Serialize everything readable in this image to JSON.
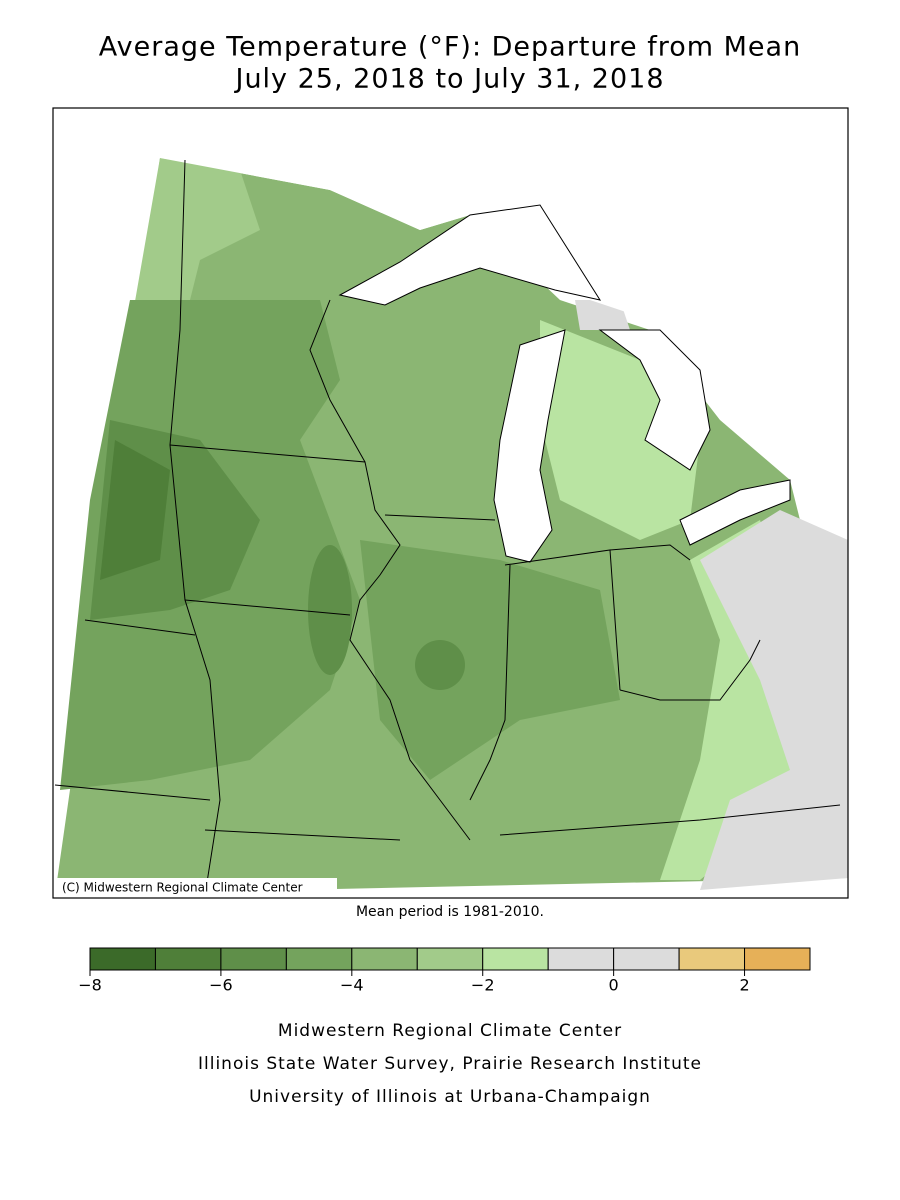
{
  "title": [
    "Average Temperature (°F): Departure from Mean",
    "July 25, 2018 to July 31, 2018"
  ],
  "map": {
    "copyright": "(C) Midwestern Regional Climate Center",
    "mean_period": "Mean period is 1981-2010."
  },
  "colorbar": {
    "bins": [
      -8,
      -7,
      -6,
      -5,
      -4,
      -3,
      -2,
      -1,
      0,
      1,
      2,
      3
    ],
    "colors": [
      "#3b6a29",
      "#4f7f39",
      "#5f8f49",
      "#74a35d",
      "#8bb673",
      "#a2cb8a",
      "#b9e4a2",
      "#dcdcdc",
      "#dcdcdc",
      "#e9c97c",
      "#e6b058"
    ],
    "ticks": [
      {
        "value": -8,
        "label": "−8"
      },
      {
        "value": -6,
        "label": "−6"
      },
      {
        "value": -4,
        "label": "−4"
      },
      {
        "value": -2,
        "label": "−2"
      },
      0,
      2
    ]
  },
  "credits": [
    "Midwestern Regional Climate Center",
    "Illinois State Water Survey, Prairie Research Institute",
    "University of Illinois at Urbana-Champaign"
  ]
}
